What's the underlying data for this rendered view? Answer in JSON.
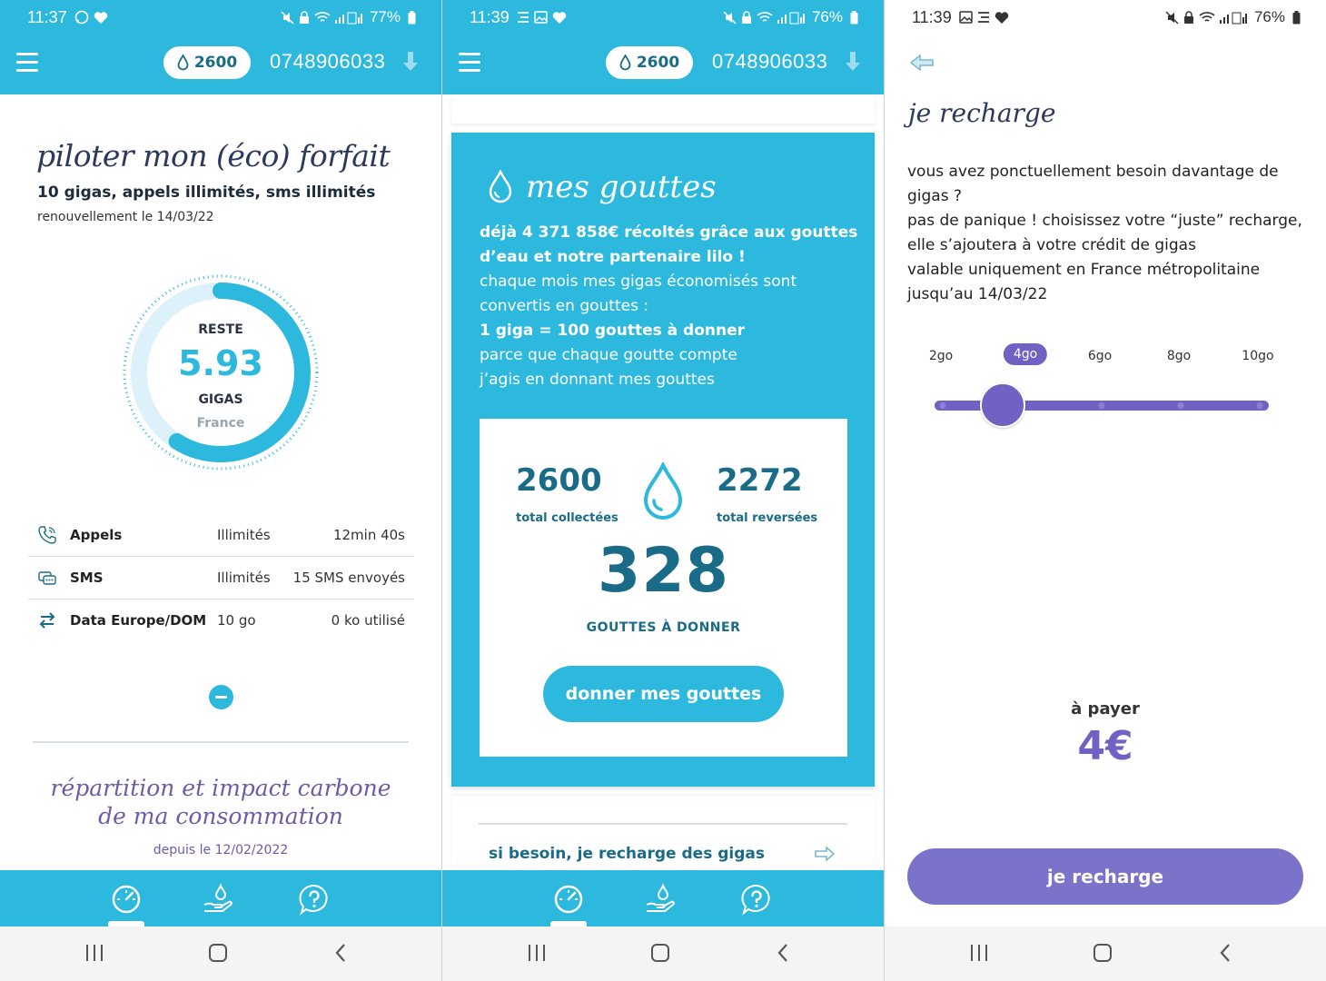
{
  "colors": {
    "primary": "#2db8de",
    "dark_teal": "#1a6b87",
    "purple": "#6f62c3",
    "purple_button": "#7b72c9",
    "title_navy": "#2b3a5c"
  },
  "screen1": {
    "status": {
      "time": "11:37",
      "battery": "77%"
    },
    "header": {
      "drops": "2600",
      "phone": "0748906033"
    },
    "title": "piloter mon (éco) forfait",
    "plan": "10 gigas, appels illimités, sms illimités",
    "renewal": "renouvellement le 14/03/22",
    "gauge": {
      "label_top": "RESTE",
      "value": "5.93",
      "unit": "GIGAS",
      "zone": "France",
      "remaining_fraction": 0.59
    },
    "usage": [
      {
        "icon": "phone-icon",
        "name": "Appels",
        "plan": "Illimités",
        "used": "12min 40s"
      },
      {
        "icon": "sms-icon",
        "name": "SMS",
        "plan": "Illimités",
        "used": "15 SMS envoyés"
      },
      {
        "icon": "transfer-icon",
        "name": "Data Europe/DOM",
        "plan": "10 go",
        "used": "0 ko utilisé"
      }
    ],
    "impact_title_line1": "répartition et impact carbone",
    "impact_title_line2": "de ma consommation",
    "since": "depuis le 12/02/2022"
  },
  "screen2": {
    "status": {
      "time": "11:39",
      "battery": "76%"
    },
    "header": {
      "drops": "2600",
      "phone": "0748906033"
    },
    "title": "mes gouttes",
    "intro_bold": "déjà 4 371 858€ récoltés grâce aux gouttes d’eau et notre partenaire lilo !",
    "line1": "chaque mois mes gigas économisés sont convertis en gouttes :",
    "line2_bold": "1 giga = 100 gouttes à donner",
    "line3": "parce que chaque goutte compte",
    "line4": "j’agis en donnant mes gouttes",
    "stats": {
      "collected": "2600",
      "collected_label": "total collectées",
      "donated": "2272",
      "donated_label": "total reversées",
      "to_give": "328",
      "to_give_label": "GOUTTES À DONNER"
    },
    "donate_button": "donner mes gouttes",
    "recharge_link": "si besoin, je recharge des gigas"
  },
  "screen3": {
    "status": {
      "time": "11:39",
      "battery": "76%"
    },
    "title": "je recharge",
    "description": [
      "vous avez ponctuellement besoin davantage de gigas ?",
      "pas de panique ! choisissez votre “juste” recharge, elle s’ajoutera à votre crédit de gigas",
      "valable uniquement en France métropolitaine jusqu’au 14/03/22"
    ],
    "slider": {
      "options": [
        "2go",
        "4go",
        "6go",
        "8go",
        "10go"
      ],
      "selected_index": 1
    },
    "pay_label": "à payer",
    "pay_value": "4€",
    "button": "je recharge"
  },
  "icons": {
    "bottom_nav": [
      "gauge-icon",
      "hand-drop-icon",
      "help-icon"
    ],
    "system_nav": [
      "recents-icon",
      "home-icon",
      "back-icon"
    ]
  }
}
